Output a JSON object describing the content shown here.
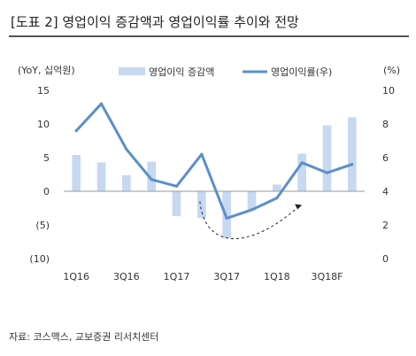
{
  "title": "[도표 2] 영업이익 증감액과 영업이익률 추이와 전망",
  "source": "자료: 코스맥스, 교보증권 리서치센터",
  "chart_data": {
    "type": "bar+line",
    "left_axis_unit": "(YoY, 십억원)",
    "right_axis_unit": "(%)",
    "left_ticks": [
      "15",
      "10",
      "5",
      "0",
      "(5)",
      "(10)"
    ],
    "right_ticks": [
      "10",
      "8",
      "6",
      "4",
      "2",
      "0"
    ],
    "left_ylim": [
      -10,
      15
    ],
    "right_ylim": [
      0,
      10
    ],
    "categories": [
      "1Q16",
      "2Q16",
      "3Q16",
      "4Q16",
      "1Q17",
      "2Q17",
      "3Q17",
      "4Q17",
      "1Q18",
      "2Q18",
      "3Q18F",
      "4Q18F"
    ],
    "x_tick_labels": [
      "1Q16",
      "3Q16",
      "1Q17",
      "3Q17",
      "1Q18",
      "3Q18F"
    ],
    "series": [
      {
        "name": "영업이익 증감액",
        "axis": "left",
        "kind": "bar",
        "color": "#c6d9f1",
        "values": [
          5.4,
          4.3,
          2.4,
          4.4,
          -3.7,
          -4.0,
          -7.0,
          -2.8,
          1.0,
          5.6,
          9.8,
          11.0
        ]
      },
      {
        "name": "영업이익률(우)",
        "axis": "right",
        "kind": "line",
        "color": "#5b8fc9",
        "values": [
          7.6,
          9.2,
          6.5,
          4.7,
          4.3,
          6.2,
          2.4,
          2.9,
          3.6,
          5.7,
          5.1,
          5.6
        ]
      }
    ],
    "annotation": "dashed-curved-arrow"
  }
}
